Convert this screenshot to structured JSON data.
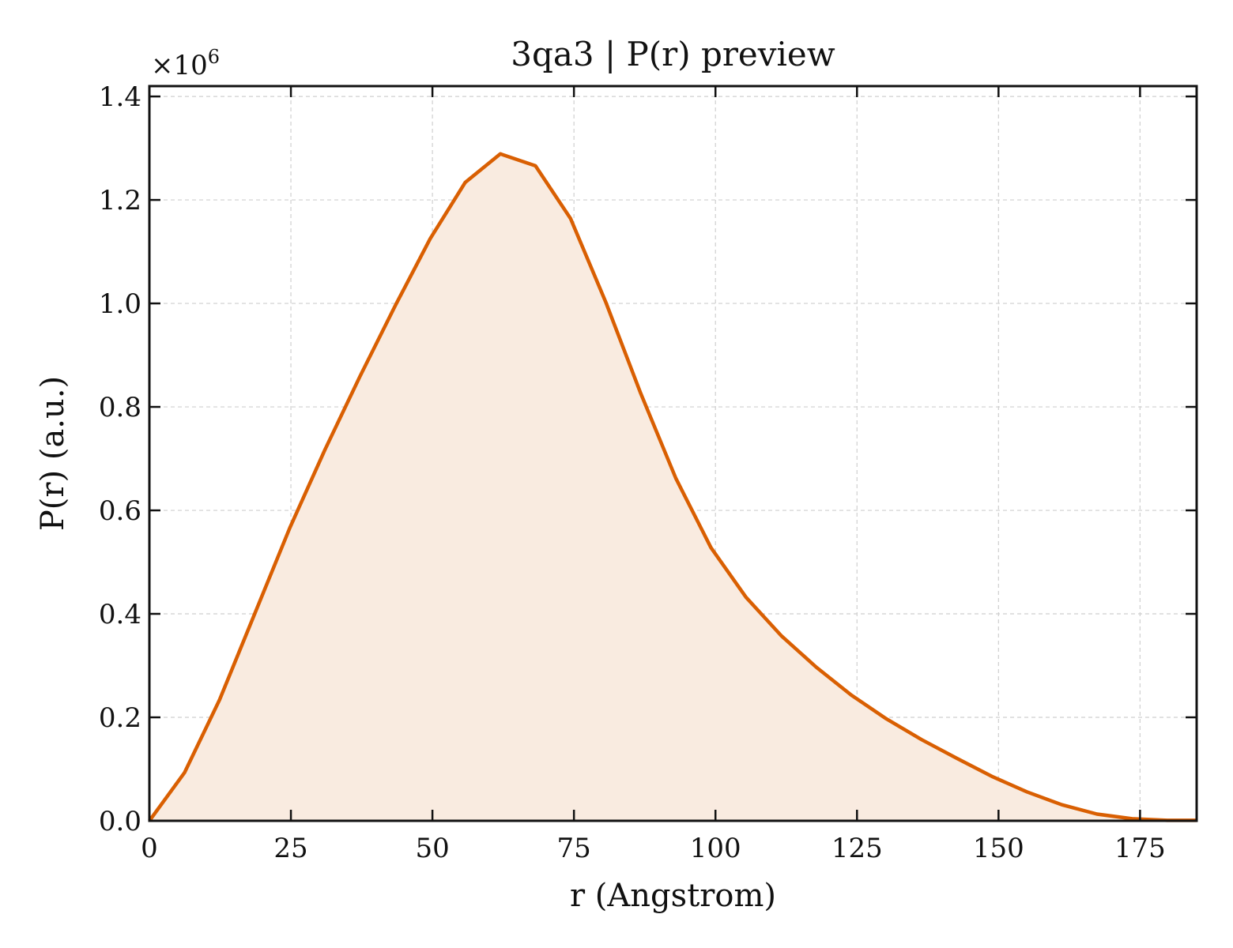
{
  "chart_data": {
    "type": "area",
    "title": "3qa3 | P(r) preview",
    "xlabel": "r (Angstrom)",
    "ylabel": "P(r) (a.u.)",
    "y_multiplier_label": "×10",
    "y_multiplier_exponent": "6",
    "xlim": [
      0,
      185
    ],
    "ylim": [
      0,
      1.42
    ],
    "xticks": [
      0,
      25,
      50,
      75,
      100,
      125,
      150,
      175
    ],
    "xtick_labels": [
      "0",
      "25",
      "50",
      "75",
      "100",
      "125",
      "150",
      "175"
    ],
    "yticks": [
      0.0,
      0.2,
      0.4,
      0.6,
      0.8,
      1.0,
      1.2,
      1.4
    ],
    "ytick_labels": [
      "0.0",
      "0.2",
      "0.4",
      "0.6",
      "0.8",
      "1.0",
      "1.2",
      "1.4"
    ],
    "grid": true,
    "colors": {
      "line": "#d95f02",
      "fill": "#f9ebe0"
    },
    "series": [
      {
        "x": [
          0,
          6.2,
          12.4,
          18.6,
          24.8,
          31.0,
          37.2,
          43.4,
          49.6,
          55.8,
          62.0,
          68.2,
          74.4,
          80.6,
          86.8,
          93.0,
          99.2,
          105.4,
          111.6,
          117.8,
          124.0,
          130.2,
          136.4,
          142.6,
          148.8,
          155.0,
          161.2,
          167.4,
          173.6,
          179.8,
          185.0
        ],
        "y": [
          0.0,
          0.093,
          0.234,
          0.4,
          0.566,
          0.717,
          0.859,
          0.995,
          1.125,
          1.234,
          1.289,
          1.266,
          1.164,
          1.003,
          0.826,
          0.662,
          0.528,
          0.432,
          0.358,
          0.297,
          0.243,
          0.197,
          0.157,
          0.121,
          0.086,
          0.056,
          0.031,
          0.013,
          0.004,
          0.001,
          0.001
        ]
      }
    ]
  }
}
